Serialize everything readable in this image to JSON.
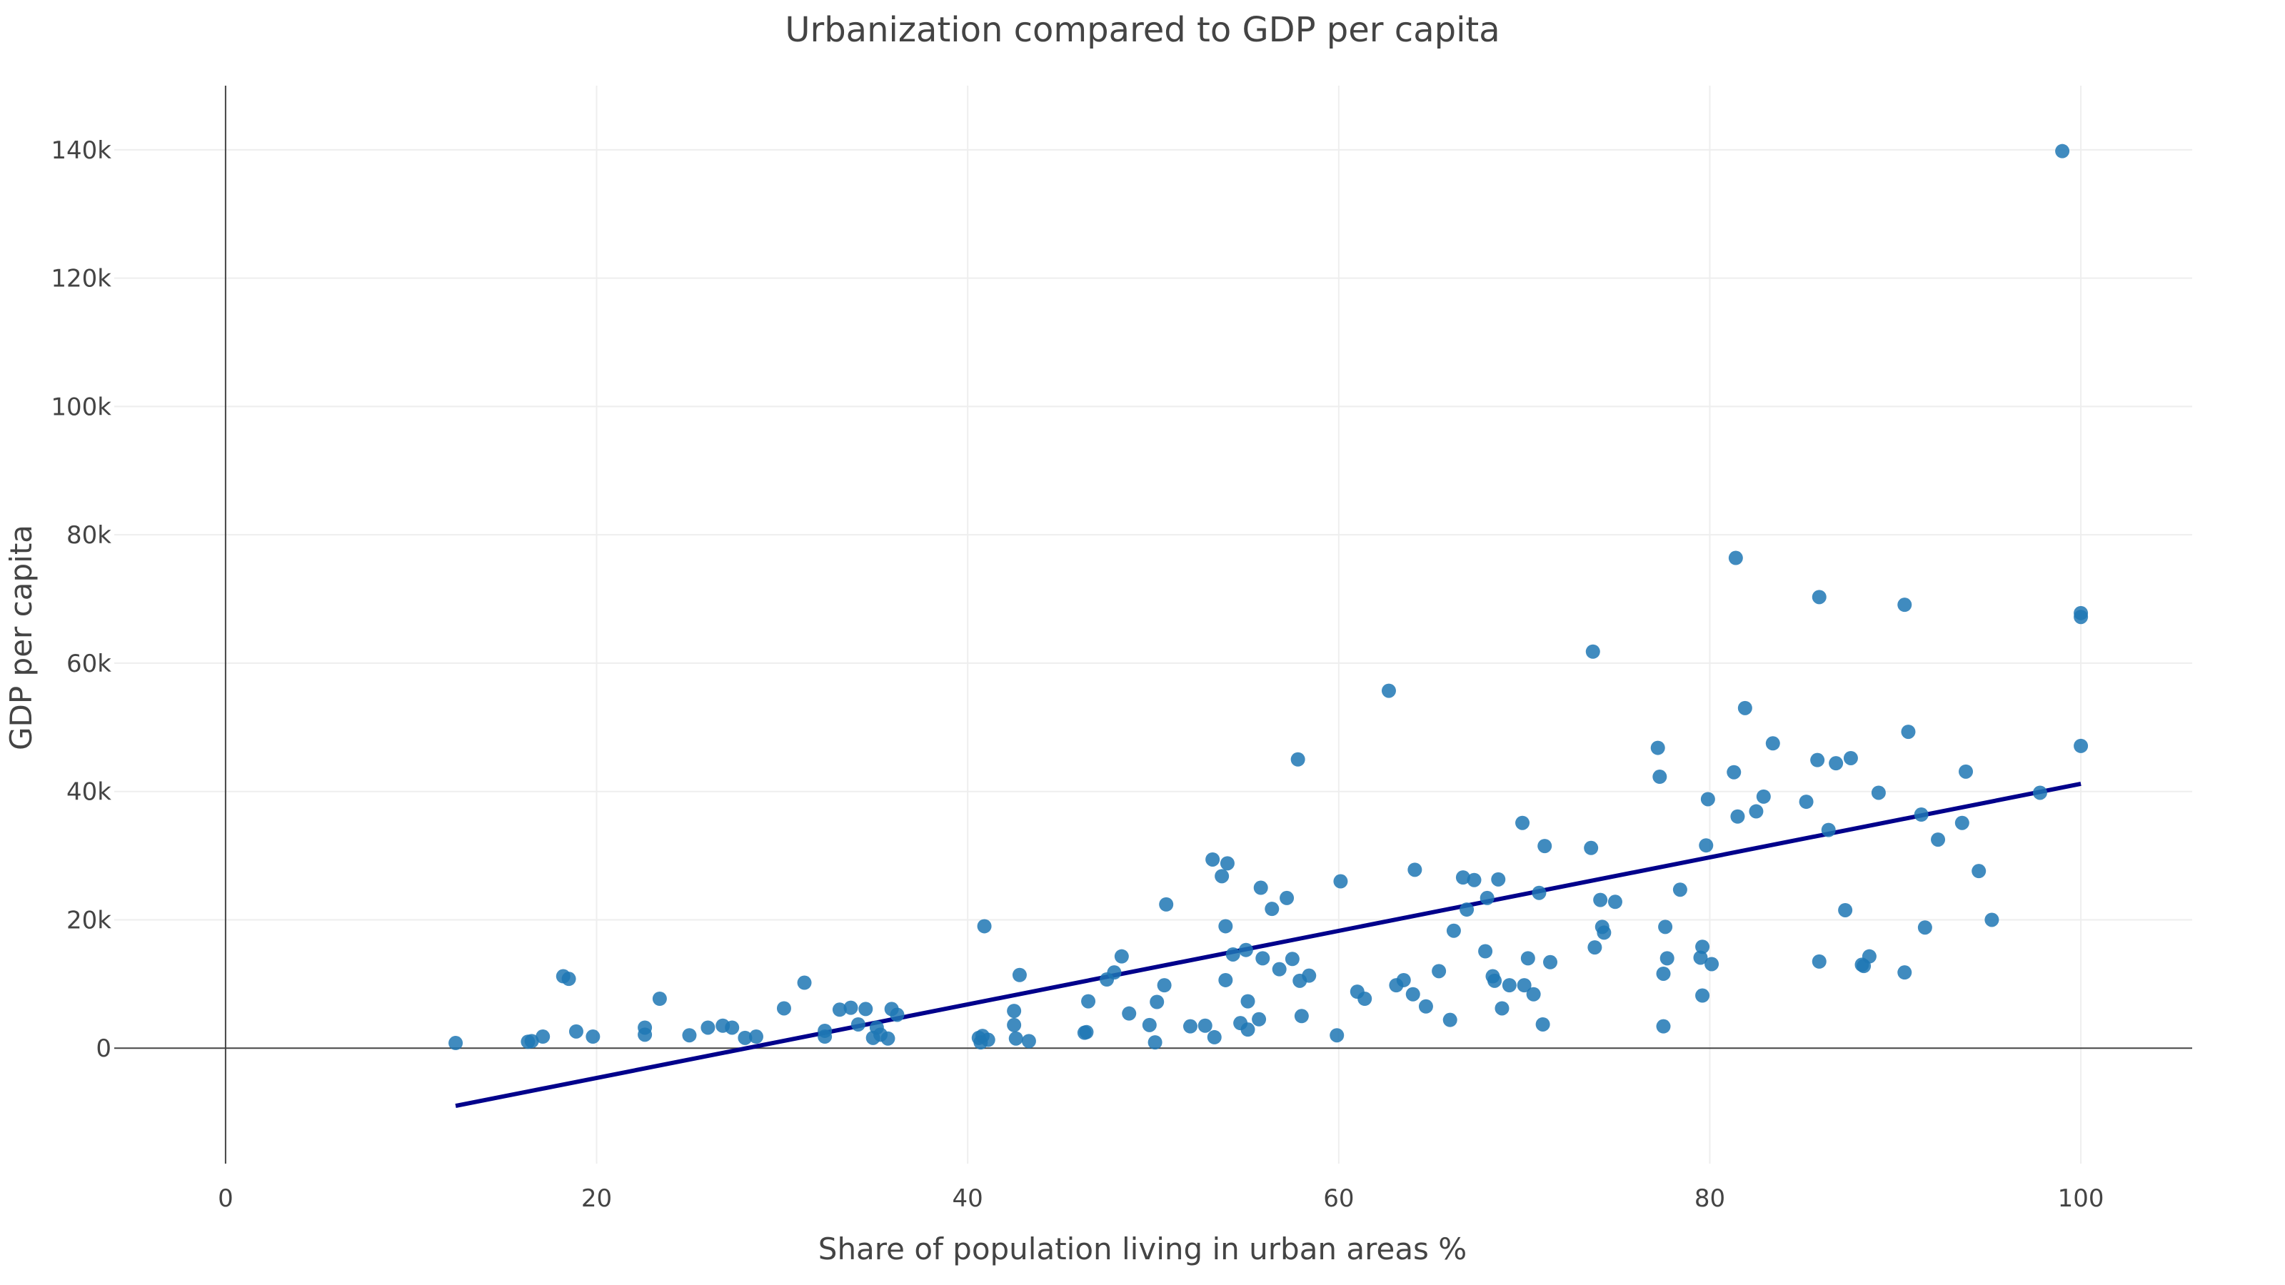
{
  "chart_data": {
    "type": "scatter",
    "title": "Urbanization compared to GDP per capita",
    "xlabel": "Share of population living in urban areas %",
    "ylabel": "GDP per capita",
    "xlim": [
      -6,
      106
    ],
    "ylim": [
      -18000,
      150000
    ],
    "x_ticks": [
      0,
      20,
      40,
      60,
      80,
      100
    ],
    "x_tick_labels": [
      "0",
      "20",
      "40",
      "60",
      "80",
      "100"
    ],
    "y_ticks": [
      0,
      20000,
      40000,
      60000,
      80000,
      100000,
      120000,
      140000
    ],
    "y_tick_labels": [
      "0",
      "20k",
      "40k",
      "60k",
      "80k",
      "100k",
      "120k",
      "140k"
    ],
    "grid": true,
    "legend": "none",
    "colors": {
      "points": "#1f77b4",
      "trendline": "#00008b",
      "zeroline": "#444444",
      "grid": "#eeeeee"
    },
    "trendline": {
      "x": [
        12.4,
        100
      ],
      "y": [
        -9000,
        41200
      ]
    },
    "points": [
      [
        12.4,
        800
      ],
      [
        16.3,
        1000
      ],
      [
        16.5,
        1100
      ],
      [
        17.1,
        1800
      ],
      [
        18.2,
        11200
      ],
      [
        18.5,
        10800
      ],
      [
        18.9,
        2600
      ],
      [
        19.8,
        1800
      ],
      [
        22.6,
        3200
      ],
      [
        22.6,
        2100
      ],
      [
        23.4,
        7700
      ],
      [
        25.0,
        2000
      ],
      [
        26.0,
        3200
      ],
      [
        26.8,
        3500
      ],
      [
        27.3,
        3200
      ],
      [
        28.0,
        1600
      ],
      [
        28.6,
        1800
      ],
      [
        30.1,
        6200
      ],
      [
        31.2,
        10200
      ],
      [
        32.3,
        1800
      ],
      [
        32.3,
        2700
      ],
      [
        33.1,
        6000
      ],
      [
        33.7,
        6300
      ],
      [
        34.1,
        3700
      ],
      [
        34.5,
        6100
      ],
      [
        34.9,
        1600
      ],
      [
        35.1,
        3200
      ],
      [
        35.3,
        2100
      ],
      [
        35.7,
        1500
      ],
      [
        35.9,
        6100
      ],
      [
        36.2,
        5200
      ],
      [
        40.6,
        1600
      ],
      [
        40.7,
        900
      ],
      [
        40.8,
        1900
      ],
      [
        40.9,
        19000
      ],
      [
        41.1,
        1300
      ],
      [
        42.5,
        3600
      ],
      [
        42.5,
        5800
      ],
      [
        42.6,
        1500
      ],
      [
        42.8,
        11400
      ],
      [
        43.3,
        1100
      ],
      [
        46.3,
        2400
      ],
      [
        46.4,
        2500
      ],
      [
        46.5,
        7300
      ],
      [
        47.5,
        10700
      ],
      [
        47.9,
        11800
      ],
      [
        48.3,
        14300
      ],
      [
        48.7,
        5400
      ],
      [
        49.8,
        3600
      ],
      [
        50.1,
        900
      ],
      [
        50.2,
        7200
      ],
      [
        50.6,
        9800
      ],
      [
        50.7,
        22400
      ],
      [
        52.0,
        3400
      ],
      [
        52.8,
        3500
      ],
      [
        53.2,
        29400
      ],
      [
        53.3,
        1700
      ],
      [
        53.7,
        26800
      ],
      [
        53.9,
        10600
      ],
      [
        53.9,
        19000
      ],
      [
        54.0,
        28800
      ],
      [
        54.3,
        14600
      ],
      [
        54.7,
        3900
      ],
      [
        55.0,
        15300
      ],
      [
        55.1,
        2900
      ],
      [
        55.1,
        7300
      ],
      [
        55.7,
        4500
      ],
      [
        55.8,
        25000
      ],
      [
        55.9,
        14000
      ],
      [
        56.4,
        21700
      ],
      [
        56.8,
        12300
      ],
      [
        57.2,
        23400
      ],
      [
        57.5,
        13900
      ],
      [
        57.8,
        45000
      ],
      [
        57.9,
        10500
      ],
      [
        58.0,
        5000
      ],
      [
        58.4,
        11300
      ],
      [
        59.9,
        2000
      ],
      [
        60.1,
        26000
      ],
      [
        61.0,
        8800
      ],
      [
        61.4,
        7700
      ],
      [
        62.7,
        55700
      ],
      [
        63.1,
        9800
      ],
      [
        63.5,
        10600
      ],
      [
        64.0,
        8400
      ],
      [
        64.1,
        27800
      ],
      [
        64.7,
        6500
      ],
      [
        65.4,
        12000
      ],
      [
        66.0,
        4400
      ],
      [
        66.2,
        18300
      ],
      [
        66.7,
        26600
      ],
      [
        66.9,
        21600
      ],
      [
        67.3,
        26200
      ],
      [
        67.9,
        15100
      ],
      [
        68.0,
        23400
      ],
      [
        68.3,
        11200
      ],
      [
        68.4,
        10500
      ],
      [
        68.6,
        26300
      ],
      [
        68.8,
        6200
      ],
      [
        69.2,
        9800
      ],
      [
        69.9,
        35100
      ],
      [
        70.0,
        9800
      ],
      [
        70.2,
        14000
      ],
      [
        70.5,
        8400
      ],
      [
        70.8,
        24200
      ],
      [
        71.0,
        3700
      ],
      [
        71.1,
        31500
      ],
      [
        71.4,
        13400
      ],
      [
        73.6,
        31200
      ],
      [
        73.7,
        61800
      ],
      [
        73.8,
        15700
      ],
      [
        74.1,
        23100
      ],
      [
        74.2,
        18900
      ],
      [
        74.3,
        18000
      ],
      [
        74.9,
        22800
      ],
      [
        77.2,
        46800
      ],
      [
        77.3,
        42300
      ],
      [
        77.5,
        11600
      ],
      [
        77.5,
        3400
      ],
      [
        77.6,
        18900
      ],
      [
        77.7,
        14000
      ],
      [
        78.4,
        24700
      ],
      [
        79.5,
        14100
      ],
      [
        79.6,
        15800
      ],
      [
        79.6,
        8200
      ],
      [
        79.8,
        31600
      ],
      [
        79.9,
        38800
      ],
      [
        80.1,
        13100
      ],
      [
        81.3,
        43000
      ],
      [
        81.4,
        76400
      ],
      [
        81.5,
        36100
      ],
      [
        81.9,
        53000
      ],
      [
        82.5,
        36900
      ],
      [
        82.9,
        39200
      ],
      [
        83.4,
        47500
      ],
      [
        85.2,
        38400
      ],
      [
        85.8,
        44900
      ],
      [
        85.9,
        13500
      ],
      [
        85.9,
        70300
      ],
      [
        86.4,
        34000
      ],
      [
        86.8,
        44400
      ],
      [
        87.3,
        21500
      ],
      [
        87.6,
        45200
      ],
      [
        88.2,
        13000
      ],
      [
        88.3,
        12800
      ],
      [
        88.6,
        14300
      ],
      [
        89.1,
        39800
      ],
      [
        90.5,
        11800
      ],
      [
        90.5,
        69100
      ],
      [
        90.7,
        49300
      ],
      [
        91.4,
        36400
      ],
      [
        91.6,
        18800
      ],
      [
        92.3,
        32500
      ],
      [
        93.6,
        35100
      ],
      [
        93.8,
        43100
      ],
      [
        94.5,
        27600
      ],
      [
        95.2,
        20000
      ],
      [
        97.8,
        39800
      ],
      [
        99.0,
        139800
      ],
      [
        100.0,
        67800
      ],
      [
        100.0,
        67200
      ],
      [
        100.0,
        47100
      ]
    ]
  }
}
